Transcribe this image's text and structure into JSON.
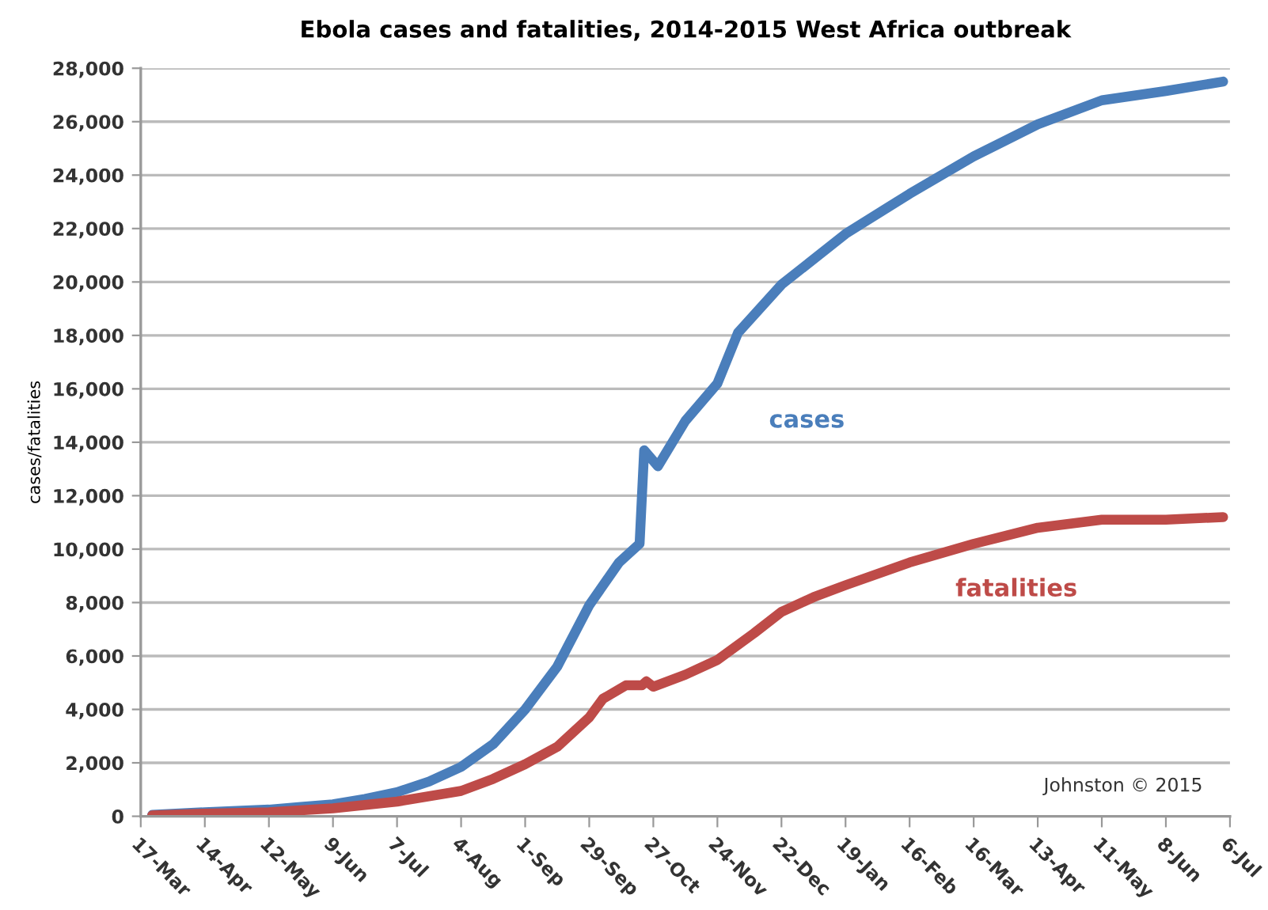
{
  "chart_data": {
    "type": "line",
    "title": "Ebola cases and fatalities, 2014-2015 West Africa outbreak",
    "ylabel": "cases/fatalities",
    "series": [
      {
        "name": "cases",
        "color": "#4a7ebb",
        "x": [
          "2014-03-22",
          "2014-04-14",
          "2014-05-12",
          "2014-05-26",
          "2014-06-09",
          "2014-06-23",
          "2014-07-07",
          "2014-07-21",
          "2014-08-04",
          "2014-08-18",
          "2014-09-01",
          "2014-09-15",
          "2014-09-29",
          "2014-10-12",
          "2014-10-21",
          "2014-10-23",
          "2014-10-29",
          "2014-11-10",
          "2014-11-24",
          "2014-12-03",
          "2014-12-22",
          "2015-01-19",
          "2015-02-16",
          "2015-03-16",
          "2015-04-13",
          "2015-05-11",
          "2015-06-08",
          "2015-07-03"
        ],
        "values": [
          50,
          150,
          250,
          350,
          450,
          650,
          900,
          1300,
          1850,
          2700,
          4000,
          5600,
          7900,
          9500,
          10200,
          13700,
          13100,
          14800,
          16200,
          18100,
          19900,
          21800,
          23300,
          24700,
          25900,
          26800,
          27150,
          27500
        ]
      },
      {
        "name": "fatalities",
        "color": "#be4b48",
        "x": [
          "2014-03-22",
          "2014-04-14",
          "2014-05-12",
          "2014-06-09",
          "2014-07-07",
          "2014-08-04",
          "2014-08-18",
          "2014-09-01",
          "2014-09-15",
          "2014-09-29",
          "2014-10-05",
          "2014-10-15",
          "2014-10-22",
          "2014-10-24",
          "2014-10-27",
          "2014-11-10",
          "2014-11-24",
          "2014-12-10",
          "2014-12-22",
          "2015-01-05",
          "2015-01-19",
          "2015-02-16",
          "2015-03-16",
          "2015-04-13",
          "2015-05-11",
          "2015-06-08",
          "2015-07-03"
        ],
        "values": [
          30,
          100,
          150,
          300,
          550,
          950,
          1400,
          1950,
          2600,
          3700,
          4400,
          4900,
          4900,
          5050,
          4850,
          5300,
          5850,
          6850,
          7650,
          8200,
          8650,
          9500,
          10200,
          10800,
          11100,
          11100,
          11200
        ]
      }
    ],
    "annotations": [
      "Johnston © 2015"
    ],
    "xlim": [
      "2014-03-17",
      "2015-07-06"
    ],
    "xticks": [
      {
        "value": "2014-03-17",
        "label": "17-Mar"
      },
      {
        "value": "2014-04-14",
        "label": "14-Apr"
      },
      {
        "value": "2014-05-12",
        "label": "12-May"
      },
      {
        "value": "2014-06-09",
        "label": "9-Jun"
      },
      {
        "value": "2014-07-07",
        "label": "7-Jul"
      },
      {
        "value": "2014-08-04",
        "label": "4-Aug"
      },
      {
        "value": "2014-09-01",
        "label": "1-Sep"
      },
      {
        "value": "2014-09-29",
        "label": "29-Sep"
      },
      {
        "value": "2014-10-27",
        "label": "27-Oct"
      },
      {
        "value": "2014-11-24",
        "label": "24-Nov"
      },
      {
        "value": "2014-12-22",
        "label": "22-Dec"
      },
      {
        "value": "2015-01-19",
        "label": "19-Jan"
      },
      {
        "value": "2015-02-16",
        "label": "16-Feb"
      },
      {
        "value": "2015-03-16",
        "label": "16-Mar"
      },
      {
        "value": "2015-04-13",
        "label": "13-Apr"
      },
      {
        "value": "2015-05-11",
        "label": "11-May"
      },
      {
        "value": "2015-06-08",
        "label": "8-Jun"
      },
      {
        "value": "2015-07-06",
        "label": "6-Jul"
      }
    ],
    "ylim": [
      0,
      28000
    ],
    "yticks": [
      {
        "value": 0,
        "label": "0"
      },
      {
        "value": 2000,
        "label": "2,000"
      },
      {
        "value": 4000,
        "label": "4,000"
      },
      {
        "value": 6000,
        "label": "6,000"
      },
      {
        "value": 8000,
        "label": "8,000"
      },
      {
        "value": 10000,
        "label": "10,000"
      },
      {
        "value": 12000,
        "label": "12,000"
      },
      {
        "value": 14000,
        "label": "14,000"
      },
      {
        "value": 16000,
        "label": "16,000"
      },
      {
        "value": 18000,
        "label": "18,000"
      },
      {
        "value": 20000,
        "label": "20,000"
      },
      {
        "value": 22000,
        "label": "22,000"
      },
      {
        "value": 24000,
        "label": "24,000"
      },
      {
        "value": 26000,
        "label": "26,000"
      },
      {
        "value": 28000,
        "label": "28,000"
      }
    ],
    "grid": "y",
    "marker": "none",
    "line_style": "solid"
  }
}
